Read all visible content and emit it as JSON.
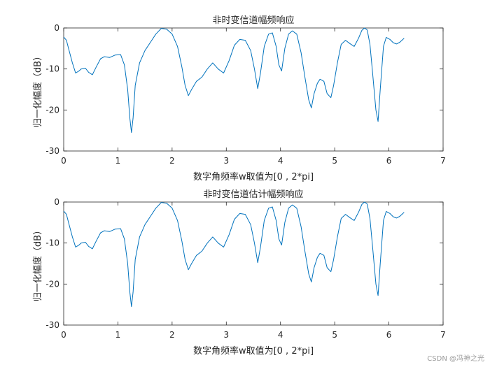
{
  "chart_data": [
    {
      "type": "line",
      "title": "非时变信道幅频响应",
      "xlabel": "数字角频率w取值为[0 , 2*pi]",
      "ylabel": "归一化幅度（dB）",
      "xlim": [
        0,
        7
      ],
      "ylim": [
        -30,
        0
      ],
      "xticks": [
        "0",
        "1",
        "2",
        "3",
        "4",
        "5",
        "6",
        "7"
      ],
      "yticks": [
        "0",
        "-10",
        "-20",
        "-30"
      ],
      "grid": false,
      "series": [
        {
          "color": "#0072BD",
          "x": [
            0.0,
            0.05,
            0.1,
            0.16,
            0.22,
            0.28,
            0.32,
            0.4,
            0.46,
            0.53,
            0.6,
            0.68,
            0.75,
            0.85,
            0.95,
            1.05,
            1.12,
            1.18,
            1.22,
            1.25,
            1.28,
            1.32,
            1.4,
            1.5,
            1.6,
            1.7,
            1.8,
            1.9,
            2.0,
            2.1,
            2.18,
            2.24,
            2.3,
            2.36,
            2.45,
            2.55,
            2.65,
            2.75,
            2.85,
            2.95,
            3.05,
            3.15,
            3.25,
            3.35,
            3.45,
            3.52,
            3.58,
            3.63,
            3.7,
            3.78,
            3.85,
            3.92,
            3.97,
            4.02,
            4.08,
            4.15,
            4.22,
            4.3,
            4.38,
            4.45,
            4.52,
            4.57,
            4.62,
            4.68,
            4.73,
            4.8,
            4.86,
            4.93,
            4.98,
            5.05,
            5.12,
            5.2,
            5.28,
            5.36,
            5.44,
            5.5,
            5.55,
            5.6,
            5.65,
            5.7,
            5.76,
            5.8,
            5.84,
            5.9,
            5.95,
            6.02,
            6.08,
            6.14,
            6.2,
            6.28
          ],
          "y": [
            -2.2,
            -3,
            -5.5,
            -8.5,
            -11,
            -10.5,
            -10,
            -9.8,
            -10.8,
            -11.4,
            -9.5,
            -7.5,
            -7.0,
            -7.2,
            -6.6,
            -6.5,
            -9,
            -15,
            -22,
            -25.5,
            -22,
            -14,
            -8.5,
            -5.5,
            -3.5,
            -1.5,
            -0.1,
            -0.3,
            -1.5,
            -4.5,
            -9.5,
            -14,
            -16.5,
            -15,
            -13,
            -12,
            -10,
            -8.5,
            -10,
            -11,
            -8,
            -4.2,
            -2.8,
            -3,
            -5.5,
            -10,
            -14.8,
            -11,
            -4.5,
            -1.5,
            -1.2,
            -4.5,
            -9,
            -10.5,
            -5,
            -1.5,
            -0.7,
            -1.5,
            -6,
            -12,
            -17.5,
            -19.5,
            -16,
            -13.5,
            -12.5,
            -13,
            -16,
            -17,
            -14,
            -8.5,
            -4,
            -3,
            -3.8,
            -4.5,
            -2.5,
            -0.6,
            0,
            -0.5,
            -4,
            -11,
            -20,
            -22.8,
            -15,
            -4.5,
            -2.3,
            -2.8,
            -3.6,
            -3.9,
            -3.5,
            -2.5
          ]
        }
      ]
    },
    {
      "type": "line",
      "title": "非时变信道估计幅频响应",
      "xlabel": "数字角频率w取值为[0 , 2*pi]",
      "ylabel": "归一化幅度（dB）",
      "xlim": [
        0,
        7
      ],
      "ylim": [
        -30,
        0
      ],
      "xticks": [
        "0",
        "1",
        "2",
        "3",
        "4",
        "5",
        "6",
        "7"
      ],
      "yticks": [
        "0",
        "-10",
        "-20",
        "-30"
      ],
      "grid": false,
      "series": [
        {
          "color": "#0072BD",
          "x": [
            0.0,
            0.05,
            0.1,
            0.16,
            0.22,
            0.28,
            0.32,
            0.4,
            0.46,
            0.53,
            0.6,
            0.68,
            0.75,
            0.85,
            0.95,
            1.05,
            1.12,
            1.18,
            1.22,
            1.25,
            1.28,
            1.32,
            1.4,
            1.5,
            1.6,
            1.7,
            1.8,
            1.9,
            2.0,
            2.1,
            2.18,
            2.24,
            2.3,
            2.36,
            2.45,
            2.55,
            2.65,
            2.75,
            2.85,
            2.95,
            3.05,
            3.15,
            3.25,
            3.35,
            3.45,
            3.52,
            3.58,
            3.63,
            3.7,
            3.78,
            3.85,
            3.92,
            3.97,
            4.02,
            4.08,
            4.15,
            4.22,
            4.3,
            4.38,
            4.45,
            4.52,
            4.57,
            4.62,
            4.68,
            4.73,
            4.8,
            4.86,
            4.93,
            4.98,
            5.05,
            5.12,
            5.2,
            5.28,
            5.36,
            5.44,
            5.5,
            5.55,
            5.6,
            5.65,
            5.7,
            5.76,
            5.8,
            5.84,
            5.9,
            5.95,
            6.02,
            6.08,
            6.14,
            6.2,
            6.28
          ],
          "y": [
            -2.2,
            -3,
            -5.5,
            -8.5,
            -11,
            -10.5,
            -10,
            -9.8,
            -10.8,
            -11.4,
            -9.5,
            -7.5,
            -7.0,
            -7.2,
            -6.6,
            -6.5,
            -9,
            -15,
            -22,
            -25.5,
            -22,
            -14,
            -8.5,
            -5.5,
            -3.5,
            -1.5,
            -0.1,
            -0.3,
            -1.5,
            -4.5,
            -9.5,
            -14,
            -16.5,
            -15,
            -13,
            -12,
            -10,
            -8.5,
            -10,
            -11,
            -8,
            -4.2,
            -2.8,
            -3,
            -5.5,
            -10,
            -14.8,
            -11,
            -4.5,
            -1.5,
            -1.2,
            -4.5,
            -9,
            -10.5,
            -5,
            -1.5,
            -0.7,
            -1.5,
            -6,
            -12,
            -17.5,
            -19.5,
            -16,
            -13.5,
            -12.5,
            -13,
            -16,
            -17,
            -14,
            -8.5,
            -4,
            -3,
            -3.8,
            -4.5,
            -2.5,
            -0.6,
            0,
            -0.5,
            -4,
            -11,
            -20,
            -22.8,
            -15,
            -4.5,
            -2.3,
            -2.8,
            -3.6,
            -3.9,
            -3.5,
            -2.5
          ]
        }
      ]
    }
  ],
  "watermark": "CSDN @冯神之光"
}
